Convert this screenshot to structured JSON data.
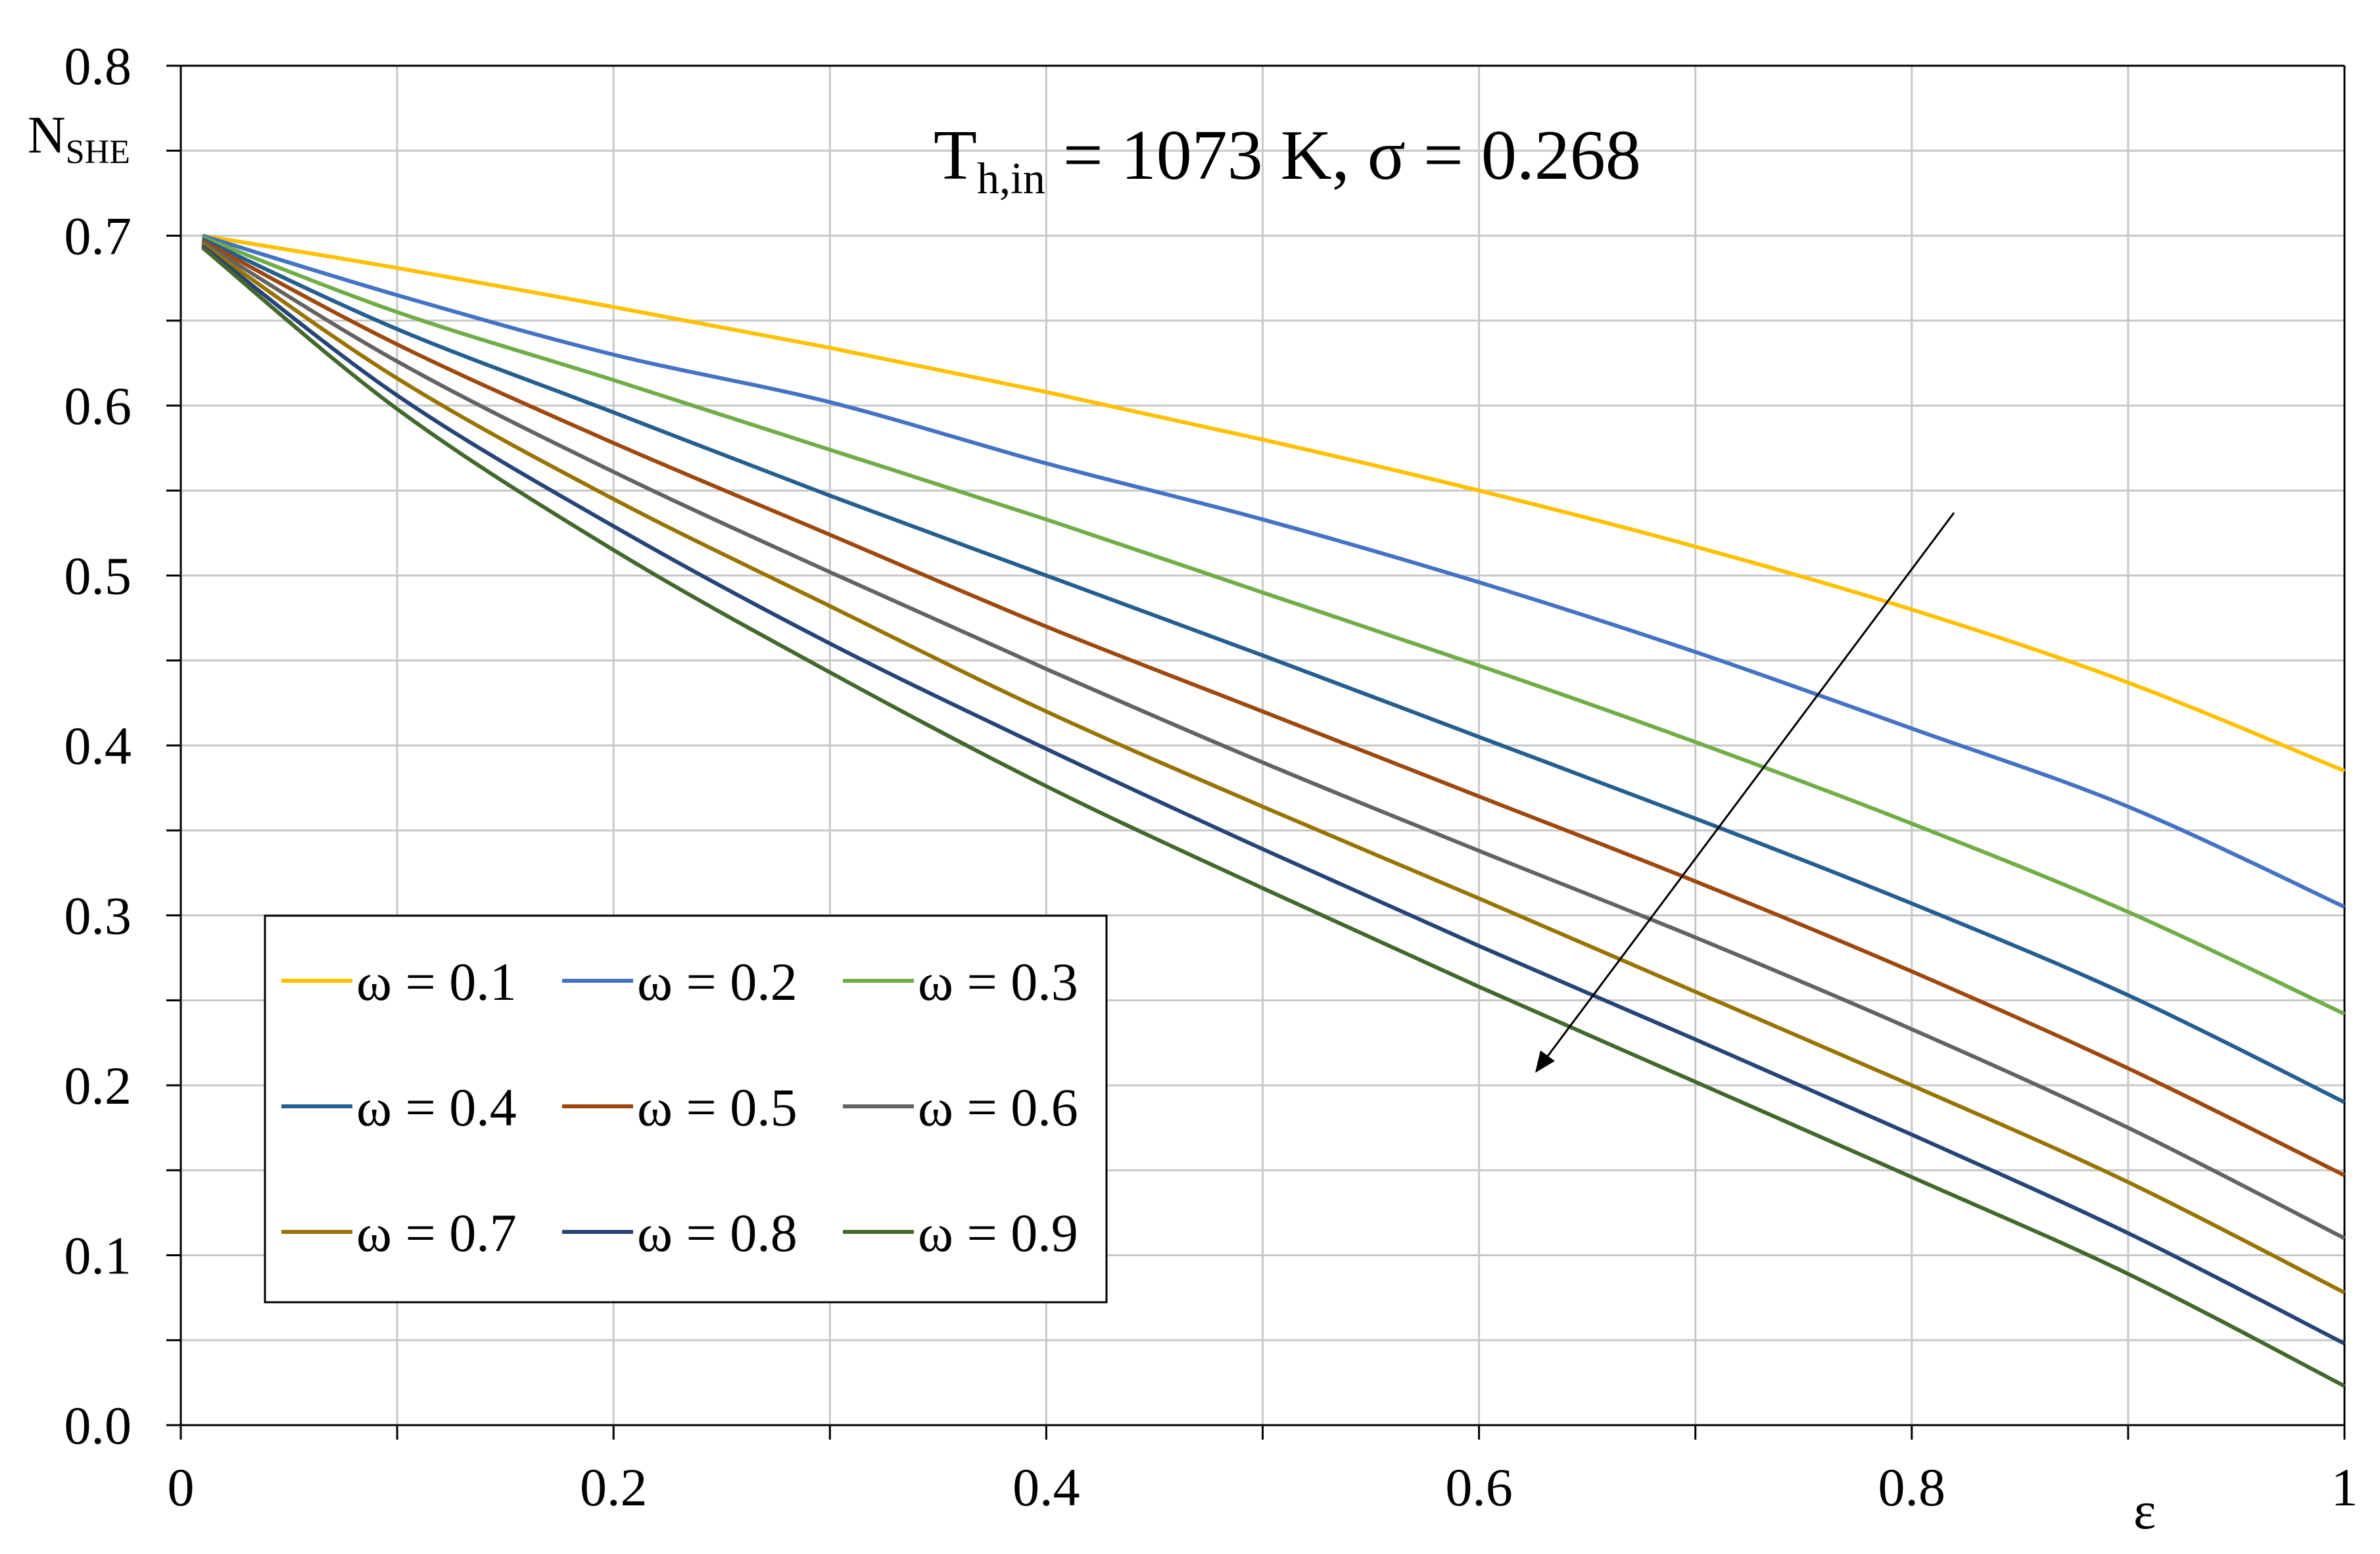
{
  "chart_data": {
    "type": "line",
    "title": {
      "main": "T",
      "sub": "h,in",
      "rest": " = 1073 K, σ = 0.268"
    },
    "xlabel": "ε",
    "ylabel": {
      "main": "N",
      "sub": "SHE"
    },
    "xlim": [
      0,
      1
    ],
    "ylim": [
      0,
      0.8
    ],
    "x_ticks": [
      {
        "value": 0,
        "label": "0"
      },
      {
        "value": 0.2,
        "label": "0.2"
      },
      {
        "value": 0.4,
        "label": "0.4"
      },
      {
        "value": 0.6,
        "label": "0.6"
      },
      {
        "value": 0.8,
        "label": "0.8"
      },
      {
        "value": 1,
        "label": "1"
      }
    ],
    "y_ticks": [
      {
        "value": 0,
        "label": "0.0"
      },
      {
        "value": 0.1,
        "label": "0.1"
      },
      {
        "value": 0.2,
        "label": "0.2"
      },
      {
        "value": 0.3,
        "label": "0.3"
      },
      {
        "value": 0.4,
        "label": "0.4"
      },
      {
        "value": 0.5,
        "label": "0.5"
      },
      {
        "value": 0.6,
        "label": "0.6"
      },
      {
        "value": 0.7,
        "label": "0.7"
      },
      {
        "value": 0.8,
        "label": "0.8"
      }
    ],
    "grid": true,
    "legend_position": "bottom-left",
    "annotation": "arrow indicating increasing ω",
    "x": [
      0.01,
      0.1,
      0.2,
      0.3,
      0.4,
      0.5,
      0.6,
      0.7,
      0.8,
      0.9,
      1.0
    ],
    "series": [
      {
        "name": "ω = 0.1",
        "color": "#FFC000",
        "values": [
          0.7,
          0.681,
          0.658,
          0.634,
          0.608,
          0.58,
          0.55,
          0.517,
          0.48,
          0.437,
          0.385
        ]
      },
      {
        "name": "ω = 0.2",
        "color": "#4472C4",
        "values": [
          0.7,
          0.665,
          0.63,
          0.602,
          0.566,
          0.533,
          0.496,
          0.455,
          0.41,
          0.364,
          0.305
        ]
      },
      {
        "name": "ω = 0.3",
        "color": "#70AD47",
        "values": [
          0.699,
          0.655,
          0.615,
          0.574,
          0.533,
          0.49,
          0.447,
          0.402,
          0.354,
          0.302,
          0.242
        ]
      },
      {
        "name": "ω = 0.4",
        "color": "#255E91",
        "values": [
          0.698,
          0.645,
          0.596,
          0.547,
          0.5,
          0.453,
          0.405,
          0.357,
          0.307,
          0.253,
          0.19
        ]
      },
      {
        "name": "ω = 0.5",
        "color": "#9E480E",
        "values": [
          0.697,
          0.636,
          0.578,
          0.524,
          0.47,
          0.42,
          0.37,
          0.32,
          0.267,
          0.21,
          0.147
        ]
      },
      {
        "name": "ω = 0.6",
        "color": "#636363",
        "values": [
          0.696,
          0.626,
          0.561,
          0.502,
          0.445,
          0.39,
          0.338,
          0.287,
          0.233,
          0.175,
          0.11
        ]
      },
      {
        "name": "ω = 0.7",
        "color": "#997300",
        "values": [
          0.695,
          0.616,
          0.545,
          0.482,
          0.42,
          0.364,
          0.31,
          0.255,
          0.2,
          0.143,
          0.078
        ]
      },
      {
        "name": "ω = 0.8",
        "color": "#264478",
        "values": [
          0.694,
          0.606,
          0.529,
          0.46,
          0.398,
          0.339,
          0.282,
          0.227,
          0.171,
          0.113,
          0.048
        ]
      },
      {
        "name": "ω = 0.9",
        "color": "#43682B",
        "values": [
          0.693,
          0.598,
          0.515,
          0.443,
          0.376,
          0.316,
          0.258,
          0.202,
          0.146,
          0.089,
          0.023
        ]
      }
    ]
  }
}
